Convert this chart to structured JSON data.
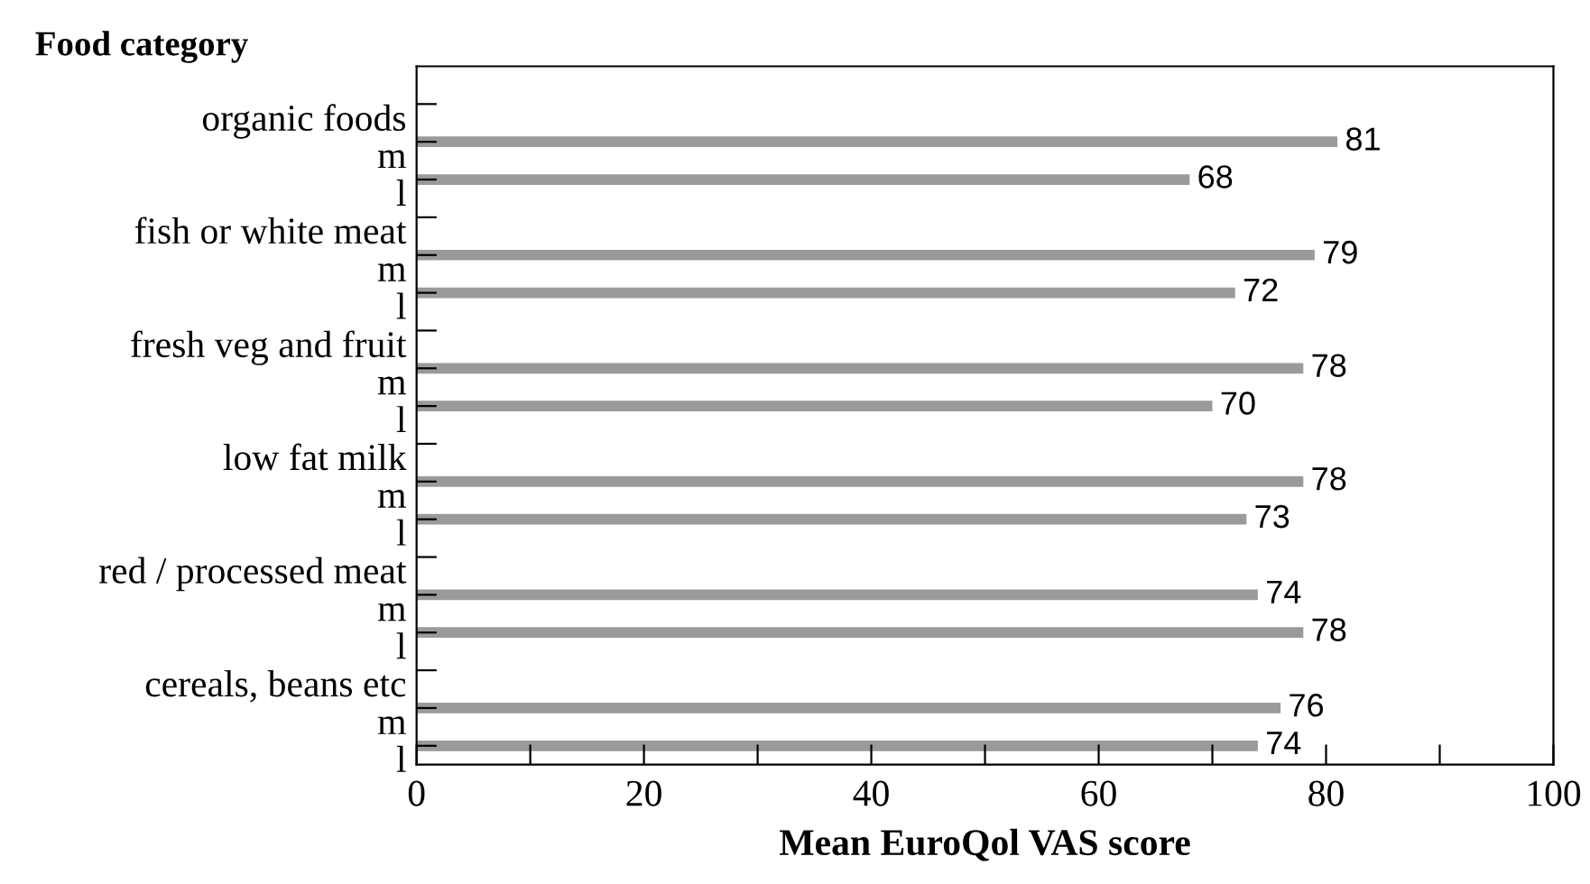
{
  "chart_data": {
    "type": "bar",
    "orientation": "horizontal",
    "ylabel": "Food category",
    "xlabel": "Mean EuroQol VAS score",
    "categories": [
      "organic foods",
      "m",
      "l",
      "fish or white meat",
      "m",
      "l",
      "fresh veg and fruit",
      "m",
      "l",
      "low fat milk",
      "m",
      "l",
      "red / processed meat",
      "m",
      "l",
      "cereals, beans etc",
      "m",
      "l"
    ],
    "values": [
      null,
      81,
      68,
      null,
      79,
      72,
      null,
      78,
      70,
      null,
      78,
      73,
      null,
      74,
      78,
      null,
      76,
      74
    ],
    "color": "#9a9a9a",
    "xlim": [
      0,
      100
    ],
    "xticks": [
      0,
      {
        "value": 10,
        "label": null
      },
      20,
      {
        "value": 30,
        "label": null
      },
      40,
      {
        "value": 50,
        "label": null
      },
      60,
      {
        "value": 70,
        "label": null
      },
      80,
      {
        "value": 90,
        "label": null
      },
      100
    ],
    "data_labels": true,
    "grid": false,
    "legend": false
  }
}
